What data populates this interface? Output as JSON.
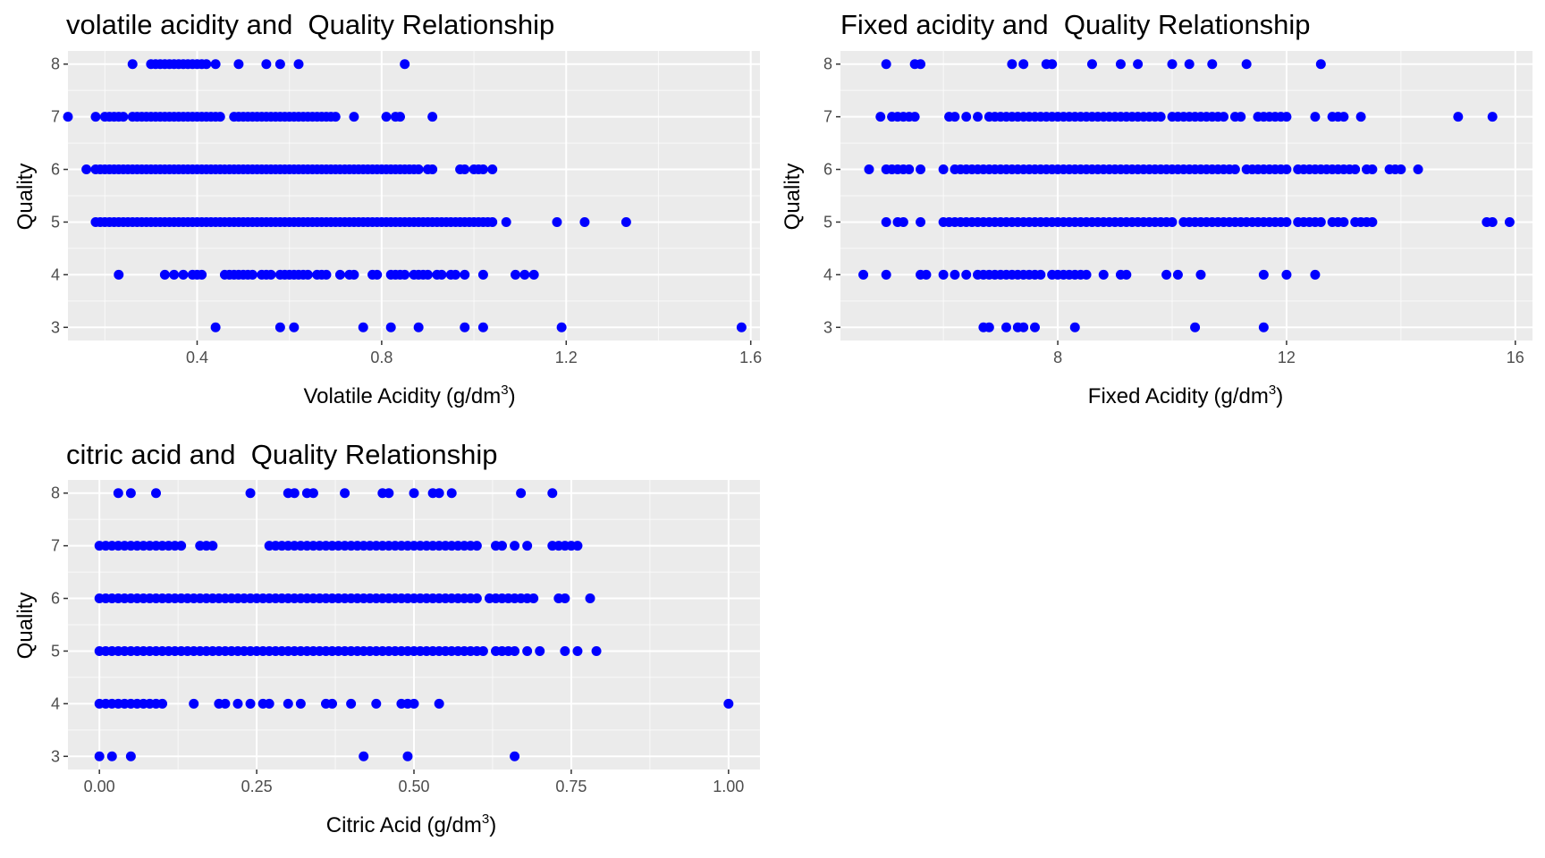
{
  "chart_data": [
    {
      "type": "scatter",
      "title": "volatile acidity and  Quality Relationship",
      "xlabel": "Volatile Acidity",
      "xunit": "(g/dm",
      "xunit_sup": "3",
      "xunit_end": ")",
      "ylabel": "Quality",
      "xlim": [
        0.12,
        1.62
      ],
      "ylim": [
        2.75,
        8.25
      ],
      "xticks": [
        0.4,
        0.8,
        1.2,
        1.6
      ],
      "xtick_labels": [
        "0.4",
        "0.8",
        "1.2",
        "1.6"
      ],
      "yticks": [
        3,
        4,
        5,
        6,
        7,
        8
      ],
      "color": "#0000ff",
      "series": [
        {
          "y": 8,
          "x": [
            0.26,
            0.3,
            0.31,
            0.32,
            0.33,
            0.34,
            0.35,
            0.36,
            0.37,
            0.38,
            0.39,
            0.4,
            0.41,
            0.42,
            0.44,
            0.49,
            0.55,
            0.58,
            0.62,
            0.85
          ]
        },
        {
          "y": 7,
          "x": [
            0.12,
            0.18,
            0.2,
            0.21,
            0.22,
            0.23,
            0.24,
            0.26,
            0.27,
            0.28,
            0.29,
            0.3,
            0.31,
            0.32,
            0.33,
            0.34,
            0.35,
            0.36,
            0.37,
            0.38,
            0.39,
            0.4,
            0.41,
            0.42,
            0.43,
            0.44,
            0.45,
            0.48,
            0.49,
            0.5,
            0.51,
            0.52,
            0.53,
            0.54,
            0.55,
            0.56,
            0.57,
            0.58,
            0.59,
            0.6,
            0.61,
            0.62,
            0.63,
            0.64,
            0.65,
            0.66,
            0.67,
            0.68,
            0.69,
            0.7,
            0.74,
            0.81,
            0.83,
            0.84,
            0.91
          ]
        },
        {
          "y": 6,
          "x": [
            0.16,
            0.18,
            0.19,
            0.2,
            0.21,
            0.22,
            0.23,
            0.24,
            0.25,
            0.26,
            0.27,
            0.28,
            0.29,
            0.3,
            0.31,
            0.32,
            0.33,
            0.34,
            0.35,
            0.36,
            0.37,
            0.38,
            0.39,
            0.4,
            0.41,
            0.42,
            0.43,
            0.44,
            0.45,
            0.46,
            0.47,
            0.48,
            0.49,
            0.5,
            0.51,
            0.52,
            0.53,
            0.54,
            0.55,
            0.56,
            0.57,
            0.58,
            0.59,
            0.6,
            0.61,
            0.62,
            0.63,
            0.64,
            0.65,
            0.66,
            0.67,
            0.68,
            0.69,
            0.7,
            0.71,
            0.72,
            0.73,
            0.74,
            0.75,
            0.76,
            0.77,
            0.78,
            0.79,
            0.8,
            0.81,
            0.82,
            0.83,
            0.84,
            0.85,
            0.86,
            0.87,
            0.88,
            0.9,
            0.91,
            0.97,
            0.98,
            1.0,
            1.01,
            1.02,
            1.04
          ]
        },
        {
          "y": 5,
          "x": [
            0.18,
            0.19,
            0.2,
            0.21,
            0.22,
            0.23,
            0.24,
            0.25,
            0.26,
            0.27,
            0.28,
            0.29,
            0.3,
            0.31,
            0.32,
            0.33,
            0.34,
            0.35,
            0.36,
            0.37,
            0.38,
            0.39,
            0.4,
            0.41,
            0.42,
            0.43,
            0.44,
            0.45,
            0.46,
            0.47,
            0.48,
            0.49,
            0.5,
            0.51,
            0.52,
            0.53,
            0.54,
            0.55,
            0.56,
            0.57,
            0.58,
            0.59,
            0.6,
            0.61,
            0.62,
            0.63,
            0.64,
            0.65,
            0.66,
            0.67,
            0.68,
            0.69,
            0.7,
            0.71,
            0.72,
            0.73,
            0.74,
            0.75,
            0.76,
            0.77,
            0.78,
            0.79,
            0.8,
            0.81,
            0.82,
            0.83,
            0.84,
            0.85,
            0.86,
            0.87,
            0.88,
            0.89,
            0.9,
            0.91,
            0.92,
            0.93,
            0.94,
            0.95,
            0.96,
            0.97,
            0.98,
            0.99,
            1.0,
            1.01,
            1.02,
            1.03,
            1.04,
            1.07,
            1.18,
            1.24,
            1.33
          ]
        },
        {
          "y": 4,
          "x": [
            0.23,
            0.33,
            0.35,
            0.37,
            0.39,
            0.4,
            0.41,
            0.46,
            0.47,
            0.48,
            0.49,
            0.5,
            0.51,
            0.52,
            0.54,
            0.55,
            0.56,
            0.58,
            0.59,
            0.6,
            0.61,
            0.62,
            0.63,
            0.64,
            0.66,
            0.67,
            0.68,
            0.71,
            0.73,
            0.74,
            0.78,
            0.79,
            0.82,
            0.83,
            0.84,
            0.85,
            0.87,
            0.88,
            0.89,
            0.9,
            0.92,
            0.93,
            0.95,
            0.96,
            0.98,
            1.02,
            1.09,
            1.11,
            1.13
          ]
        },
        {
          "y": 3,
          "x": [
            0.44,
            0.58,
            0.61,
            0.76,
            0.82,
            0.88,
            0.98,
            1.02,
            1.19,
            1.58
          ]
        }
      ]
    },
    {
      "type": "scatter",
      "title": "Fixed acidity and  Quality Relationship",
      "xlabel": "Fixed Acidity",
      "xunit": "(g/dm",
      "xunit_sup": "3",
      "xunit_end": ")",
      "ylabel": "Quality",
      "xlim": [
        4.2,
        16.3
      ],
      "ylim": [
        2.75,
        8.25
      ],
      "xticks": [
        8,
        12,
        16
      ],
      "xtick_labels": [
        "8",
        "12",
        "16"
      ],
      "yticks": [
        3,
        4,
        5,
        6,
        7,
        8
      ],
      "color": "#0000ff",
      "series": [
        {
          "y": 8,
          "x": [
            5.0,
            5.5,
            5.6,
            7.2,
            7.4,
            7.8,
            7.9,
            8.6,
            9.1,
            9.4,
            10.0,
            10.3,
            10.7,
            11.3,
            12.6
          ]
        },
        {
          "y": 7,
          "x": [
            4.9,
            5.1,
            5.2,
            5.3,
            5.4,
            5.5,
            6.1,
            6.2,
            6.4,
            6.6,
            6.8,
            6.9,
            7.0,
            7.1,
            7.2,
            7.3,
            7.4,
            7.5,
            7.6,
            7.7,
            7.8,
            7.9,
            8.0,
            8.1,
            8.2,
            8.3,
            8.4,
            8.5,
            8.6,
            8.7,
            8.8,
            8.9,
            9.0,
            9.1,
            9.2,
            9.3,
            9.4,
            9.5,
            9.6,
            9.7,
            9.8,
            10.0,
            10.1,
            10.2,
            10.3,
            10.4,
            10.5,
            10.6,
            10.7,
            10.8,
            10.9,
            11.1,
            11.2,
            11.5,
            11.6,
            11.7,
            11.8,
            11.9,
            12.0,
            12.5,
            12.8,
            12.9,
            13.0,
            13.3,
            15.0,
            15.6
          ]
        },
        {
          "y": 6,
          "x": [
            4.7,
            5.0,
            5.1,
            5.2,
            5.3,
            5.4,
            5.6,
            6.0,
            6.2,
            6.3,
            6.4,
            6.5,
            6.6,
            6.7,
            6.8,
            6.9,
            7.0,
            7.1,
            7.2,
            7.3,
            7.4,
            7.5,
            7.6,
            7.7,
            7.8,
            7.9,
            8.0,
            8.1,
            8.2,
            8.3,
            8.4,
            8.5,
            8.6,
            8.7,
            8.8,
            8.9,
            9.0,
            9.1,
            9.2,
            9.3,
            9.4,
            9.5,
            9.6,
            9.7,
            9.8,
            9.9,
            10.0,
            10.1,
            10.2,
            10.3,
            10.4,
            10.5,
            10.6,
            10.7,
            10.8,
            10.9,
            11.0,
            11.1,
            11.3,
            11.4,
            11.5,
            11.6,
            11.7,
            11.8,
            11.9,
            12.0,
            12.2,
            12.3,
            12.4,
            12.5,
            12.6,
            12.7,
            12.8,
            12.9,
            13.0,
            13.1,
            13.2,
            13.4,
            13.5,
            13.8,
            13.9,
            14.0,
            14.3
          ]
        },
        {
          "y": 5,
          "x": [
            5.0,
            5.2,
            5.3,
            5.6,
            6.0,
            6.1,
            6.2,
            6.3,
            6.4,
            6.5,
            6.6,
            6.7,
            6.8,
            6.9,
            7.0,
            7.1,
            7.2,
            7.3,
            7.4,
            7.5,
            7.6,
            7.7,
            7.8,
            7.9,
            8.0,
            8.1,
            8.2,
            8.3,
            8.4,
            8.5,
            8.6,
            8.7,
            8.8,
            8.9,
            9.0,
            9.1,
            9.2,
            9.3,
            9.4,
            9.5,
            9.6,
            9.7,
            9.8,
            9.9,
            10.0,
            10.2,
            10.3,
            10.4,
            10.5,
            10.6,
            10.7,
            10.8,
            10.9,
            11.0,
            11.1,
            11.2,
            11.3,
            11.4,
            11.5,
            11.6,
            11.7,
            11.8,
            11.9,
            12.0,
            12.2,
            12.3,
            12.4,
            12.5,
            12.6,
            12.8,
            12.9,
            13.0,
            13.2,
            13.3,
            13.4,
            13.5,
            15.5,
            15.6,
            15.9
          ]
        },
        {
          "y": 4,
          "x": [
            4.6,
            5.0,
            5.6,
            5.7,
            6.0,
            6.2,
            6.4,
            6.6,
            6.7,
            6.8,
            6.9,
            7.0,
            7.1,
            7.2,
            7.3,
            7.4,
            7.5,
            7.6,
            7.7,
            7.9,
            8.0,
            8.1,
            8.2,
            8.3,
            8.4,
            8.5,
            8.8,
            9.1,
            9.2,
            9.9,
            10.1,
            10.5,
            11.6,
            12.0,
            12.5
          ]
        },
        {
          "y": 3,
          "x": [
            6.7,
            6.8,
            7.1,
            7.3,
            7.4,
            7.6,
            8.3,
            10.4,
            11.6
          ]
        }
      ]
    },
    {
      "type": "scatter",
      "title": "citric acid and  Quality Relationship",
      "xlabel": "Citric Acid",
      "xunit": "(g/dm",
      "xunit_sup": "3",
      "xunit_end": ")",
      "ylabel": "Quality",
      "xlim": [
        -0.05,
        1.05
      ],
      "ylim": [
        2.75,
        8.25
      ],
      "xticks": [
        0.0,
        0.25,
        0.5,
        0.75,
        1.0
      ],
      "xtick_labels": [
        "0.00",
        "0.25",
        "0.50",
        "0.75",
        "1.00"
      ],
      "yticks": [
        3,
        4,
        5,
        6,
        7,
        8
      ],
      "color": "#0000ff",
      "series": [
        {
          "y": 8,
          "x": [
            0.03,
            0.05,
            0.09,
            0.24,
            0.3,
            0.31,
            0.33,
            0.34,
            0.39,
            0.45,
            0.46,
            0.5,
            0.53,
            0.54,
            0.56,
            0.67,
            0.72
          ]
        },
        {
          "y": 7,
          "x": [
            0.0,
            0.01,
            0.02,
            0.03,
            0.04,
            0.05,
            0.06,
            0.07,
            0.08,
            0.09,
            0.1,
            0.11,
            0.12,
            0.13,
            0.16,
            0.17,
            0.18,
            0.27,
            0.28,
            0.29,
            0.3,
            0.31,
            0.32,
            0.33,
            0.34,
            0.35,
            0.36,
            0.37,
            0.38,
            0.39,
            0.4,
            0.41,
            0.42,
            0.43,
            0.44,
            0.45,
            0.46,
            0.47,
            0.48,
            0.49,
            0.5,
            0.51,
            0.52,
            0.53,
            0.54,
            0.55,
            0.56,
            0.57,
            0.58,
            0.59,
            0.6,
            0.63,
            0.64,
            0.66,
            0.68,
            0.72,
            0.73,
            0.74,
            0.75,
            0.76
          ]
        },
        {
          "y": 6,
          "x": [
            0.0,
            0.01,
            0.02,
            0.03,
            0.04,
            0.05,
            0.06,
            0.07,
            0.08,
            0.09,
            0.1,
            0.11,
            0.12,
            0.13,
            0.14,
            0.15,
            0.16,
            0.17,
            0.18,
            0.19,
            0.2,
            0.21,
            0.22,
            0.23,
            0.24,
            0.25,
            0.26,
            0.27,
            0.28,
            0.29,
            0.3,
            0.31,
            0.32,
            0.33,
            0.34,
            0.35,
            0.36,
            0.37,
            0.38,
            0.39,
            0.4,
            0.41,
            0.42,
            0.43,
            0.44,
            0.45,
            0.46,
            0.47,
            0.48,
            0.49,
            0.5,
            0.51,
            0.52,
            0.53,
            0.54,
            0.55,
            0.56,
            0.57,
            0.58,
            0.59,
            0.6,
            0.62,
            0.63,
            0.64,
            0.65,
            0.66,
            0.67,
            0.68,
            0.69,
            0.73,
            0.74,
            0.78
          ]
        },
        {
          "y": 5,
          "x": [
            0.0,
            0.01,
            0.02,
            0.03,
            0.04,
            0.05,
            0.06,
            0.07,
            0.08,
            0.09,
            0.1,
            0.11,
            0.12,
            0.13,
            0.14,
            0.15,
            0.16,
            0.17,
            0.18,
            0.19,
            0.2,
            0.21,
            0.22,
            0.23,
            0.24,
            0.25,
            0.26,
            0.27,
            0.28,
            0.29,
            0.3,
            0.31,
            0.32,
            0.33,
            0.34,
            0.35,
            0.36,
            0.37,
            0.38,
            0.39,
            0.4,
            0.41,
            0.42,
            0.43,
            0.44,
            0.45,
            0.46,
            0.47,
            0.48,
            0.49,
            0.5,
            0.51,
            0.52,
            0.53,
            0.54,
            0.55,
            0.56,
            0.57,
            0.58,
            0.59,
            0.6,
            0.61,
            0.63,
            0.64,
            0.65,
            0.66,
            0.68,
            0.7,
            0.74,
            0.76,
            0.79
          ]
        },
        {
          "y": 4,
          "x": [
            0.0,
            0.01,
            0.02,
            0.03,
            0.04,
            0.05,
            0.06,
            0.07,
            0.08,
            0.09,
            0.1,
            0.15,
            0.19,
            0.2,
            0.22,
            0.24,
            0.26,
            0.27,
            0.3,
            0.32,
            0.36,
            0.37,
            0.4,
            0.44,
            0.48,
            0.49,
            0.5,
            0.54,
            1.0
          ]
        },
        {
          "y": 3,
          "x": [
            0.0,
            0.02,
            0.05,
            0.42,
            0.49,
            0.66
          ]
        }
      ]
    }
  ]
}
